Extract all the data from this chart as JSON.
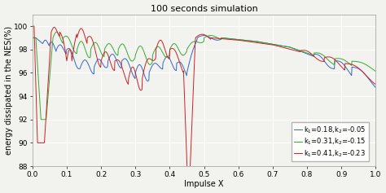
{
  "title": "100 seconds simulation",
  "xlabel": "Impulse X",
  "ylabel": "energy dissipated in the NES(%)",
  "xlim": [
    0,
    1
  ],
  "ylim": [
    88,
    101
  ],
  "yticks": [
    88,
    90,
    92,
    94,
    96,
    98,
    100
  ],
  "xticks": [
    0,
    0.1,
    0.2,
    0.3,
    0.4,
    0.5,
    0.6,
    0.7,
    0.8,
    0.9,
    1
  ],
  "legend": [
    {
      "label": "k$_1$=0.18,k$_2$=-0.05",
      "color": "#3366cc"
    },
    {
      "label": "k$_1$=0.31,k$_2$=-0.15",
      "color": "#33aa33"
    },
    {
      "label": "k$_1$=0.41,k$_2$=-0.23",
      "color": "#cc2222"
    }
  ],
  "bg_color": "#f2f2ee",
  "grid_color": "#ffffff",
  "title_fontsize": 8,
  "label_fontsize": 7,
  "tick_fontsize": 6.5,
  "legend_fontsize": 6
}
